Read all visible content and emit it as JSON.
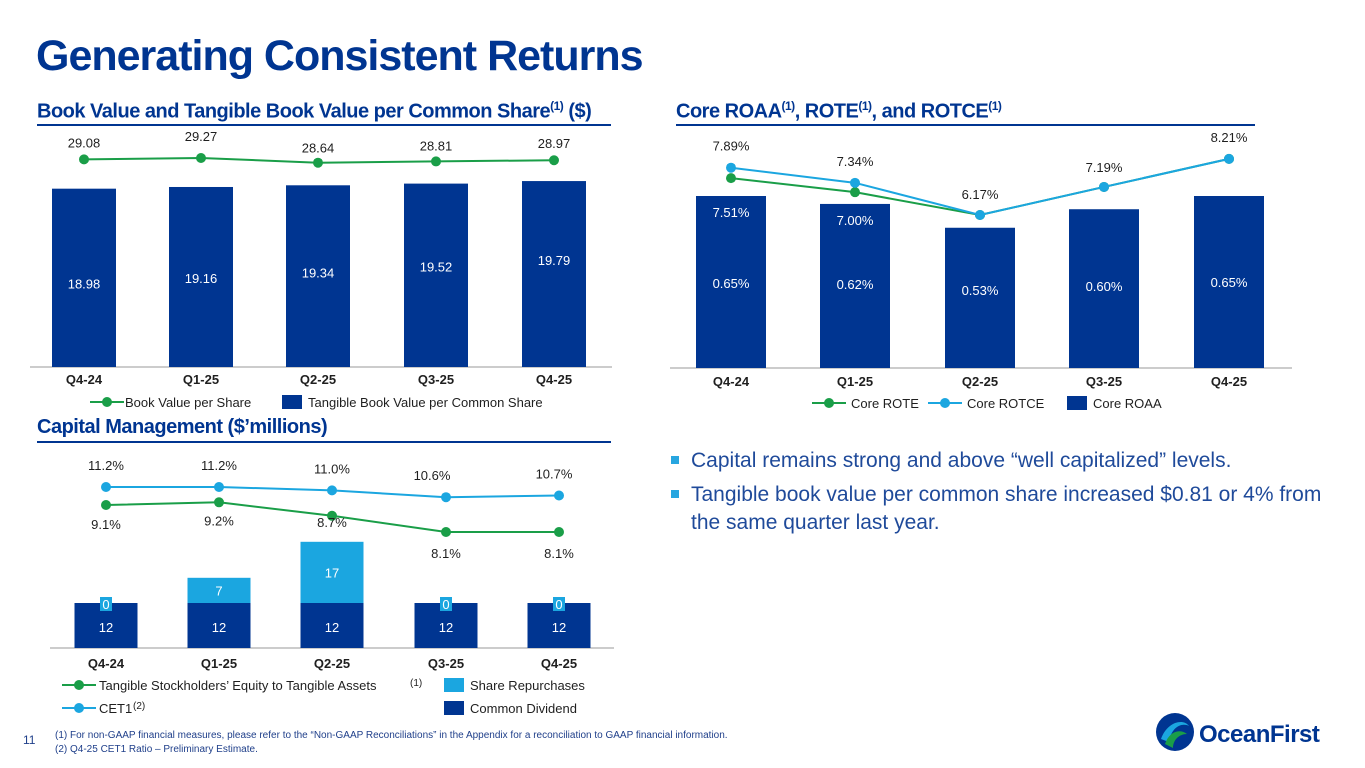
{
  "page": {
    "title": "Generating Consistent Returns",
    "page_number": "11"
  },
  "sections": {
    "bv": {
      "title_main": "Book Value and Tangible Book Value per Common Share",
      "title_sup": "(1)",
      "title_tail": " ($)"
    },
    "ret": {
      "title_a": "Core ROAA",
      "sup_a": "(1)",
      "title_b": ", ROTE",
      "sup_b": "(1)",
      "title_c": ", and ROTCE",
      "sup_c": "(1)"
    },
    "cap": {
      "title": "Capital Management ($’millions)"
    }
  },
  "colors": {
    "navy": "#003591",
    "green": "#1a9e48",
    "lightblue": "#1ba6e0",
    "text": "#1f1f1f"
  },
  "chart_data": [
    {
      "id": "book_value",
      "type": "bar+line",
      "categories": [
        "Q4-24",
        "Q1-25",
        "Q2-25",
        "Q3-25",
        "Q4-25"
      ],
      "bars": {
        "name": "Tangible Book Value per Common Share",
        "values": [
          18.98,
          19.16,
          19.34,
          19.52,
          19.79
        ],
        "labels": [
          "18.98",
          "19.16",
          "19.34",
          "19.52",
          "19.79"
        ]
      },
      "line": {
        "name": "Book Value per Share",
        "values": [
          29.08,
          29.27,
          28.64,
          28.81,
          28.97
        ],
        "labels": [
          "29.08",
          "29.27",
          "28.64",
          "28.81",
          "28.97"
        ]
      },
      "legend": {
        "line": "Book Value per Share",
        "bar": "Tangible Book Value per Common Share"
      }
    },
    {
      "id": "returns",
      "type": "bar+line",
      "categories": [
        "Q4-24",
        "Q1-25",
        "Q2-25",
        "Q3-25",
        "Q4-25"
      ],
      "bars": {
        "name": "Core ROAA",
        "values": [
          0.65,
          0.62,
          0.53,
          0.6,
          0.65
        ],
        "labels": [
          "0.65%",
          "0.62%",
          "0.53%",
          "0.60%",
          "0.65%"
        ]
      },
      "rote": {
        "name": "Core ROTE",
        "values": [
          7.51,
          7.0,
          6.17,
          7.19,
          8.21
        ],
        "labels": [
          "7.51%",
          "7.00%",
          "",
          "",
          ""
        ]
      },
      "rotce": {
        "name": "Core ROTCE",
        "values": [
          7.89,
          7.34,
          6.17,
          7.19,
          8.21
        ],
        "labels": [
          "7.89%",
          "7.34%",
          "6.17%",
          "7.19%",
          "8.21%"
        ]
      },
      "legend": {
        "rote": "Core ROTE",
        "rotce": "Core ROTCE",
        "bar": "Core ROAA"
      }
    },
    {
      "id": "capital",
      "type": "stacked-bar+line",
      "categories": [
        "Q4-24",
        "Q1-25",
        "Q2-25",
        "Q3-25",
        "Q4-25"
      ],
      "dividend": {
        "name": "Common Dividend",
        "values": [
          12,
          12,
          12,
          12,
          12
        ],
        "labels": [
          "12",
          "12",
          "12",
          "12",
          "12"
        ]
      },
      "repurchases": {
        "name": "Share Repurchases",
        "values": [
          0,
          7,
          17,
          0,
          0
        ],
        "labels": [
          "0",
          "7",
          "17",
          "0",
          "0"
        ]
      },
      "cet1": {
        "name": "CET1",
        "values": [
          11.2,
          11.2,
          11.0,
          10.6,
          10.7
        ],
        "labels": [
          "11.2%",
          "11.2%",
          "11.0%",
          "10.6%",
          "10.7%"
        ]
      },
      "tce": {
        "name": "Tangible Stockholders’ Equity to Tangible Assets",
        "values": [
          9.1,
          9.2,
          8.7,
          8.1,
          8.1
        ],
        "labels": [
          "9.1%",
          "9.2%",
          "8.7%",
          "8.1%",
          "8.1%"
        ]
      },
      "legend": {
        "tce": "Tangible Stockholders’ Equity to Tangible Assets",
        "tce_sup": "(1)",
        "cet1": "CET1",
        "cet1_sup": "(2)",
        "rep": "Share Repurchases",
        "div": "Common Dividend"
      }
    }
  ],
  "bullets": [
    "Capital remains strong and above “well capitalized” levels.",
    "Tangible book value per common share increased $0.81 or 4% from the same quarter last year."
  ],
  "footnotes": [
    "(1)  For non-GAAP financial measures, please refer to the “Non-GAAP Reconciliations” in the Appendix for a reconciliation to GAAP financial information.",
    "(2)  Q4-25 CET1 Ratio – Preliminary Estimate."
  ],
  "logo": {
    "text": "OceanFirst"
  }
}
